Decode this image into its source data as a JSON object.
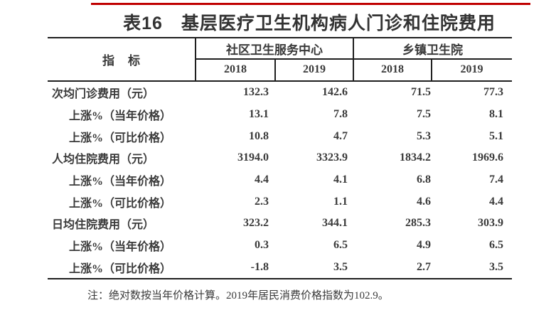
{
  "page": {
    "background_color": "#ffffff",
    "rule_color": "#c00000",
    "line_color": "#1f1f1f",
    "text_color": "#3a3a3a"
  },
  "title": "表16　基层医疗卫生机构病人门诊和住院费用",
  "table": {
    "indicator_header": "指　标",
    "groups": [
      {
        "label": "社区卫生服务中心",
        "years": [
          "2018",
          "2019"
        ]
      },
      {
        "label": "乡镇卫生院",
        "years": [
          "2018",
          "2019"
        ]
      }
    ],
    "rows": [
      {
        "label": "次均门诊费用（元）",
        "indent": 0,
        "values": [
          "132.3",
          "142.6",
          "71.5",
          "77.3"
        ]
      },
      {
        "label": "上涨%（当年价格）",
        "indent": 1,
        "values": [
          "13.1",
          "7.8",
          "7.5",
          "8.1"
        ]
      },
      {
        "label": "上涨%（可比价格）",
        "indent": 1,
        "values": [
          "10.8",
          "4.7",
          "5.3",
          "5.1"
        ]
      },
      {
        "label": "人均住院费用（元）",
        "indent": 0,
        "values": [
          "3194.0",
          "3323.9",
          "1834.2",
          "1969.6"
        ]
      },
      {
        "label": "上涨%（当年价格）",
        "indent": 1,
        "values": [
          "4.4",
          "4.1",
          "6.8",
          "7.4"
        ]
      },
      {
        "label": "上涨%（可比价格）",
        "indent": 1,
        "values": [
          "2.3",
          "1.1",
          "4.6",
          "4.4"
        ]
      },
      {
        "label": "日均住院费用（元）",
        "indent": 0,
        "values": [
          "323.2",
          "344.1",
          "285.3",
          "303.9"
        ]
      },
      {
        "label": "上涨%（当年价格）",
        "indent": 1,
        "values": [
          "0.3",
          "6.5",
          "4.9",
          "6.5"
        ]
      },
      {
        "label": "上涨%（可比价格）",
        "indent": 1,
        "values": [
          "-1.8",
          "3.5",
          "2.7",
          "3.5"
        ]
      }
    ]
  },
  "note": "注：绝对数按当年价格计算。2019年居民消费价格指数为102.9。"
}
